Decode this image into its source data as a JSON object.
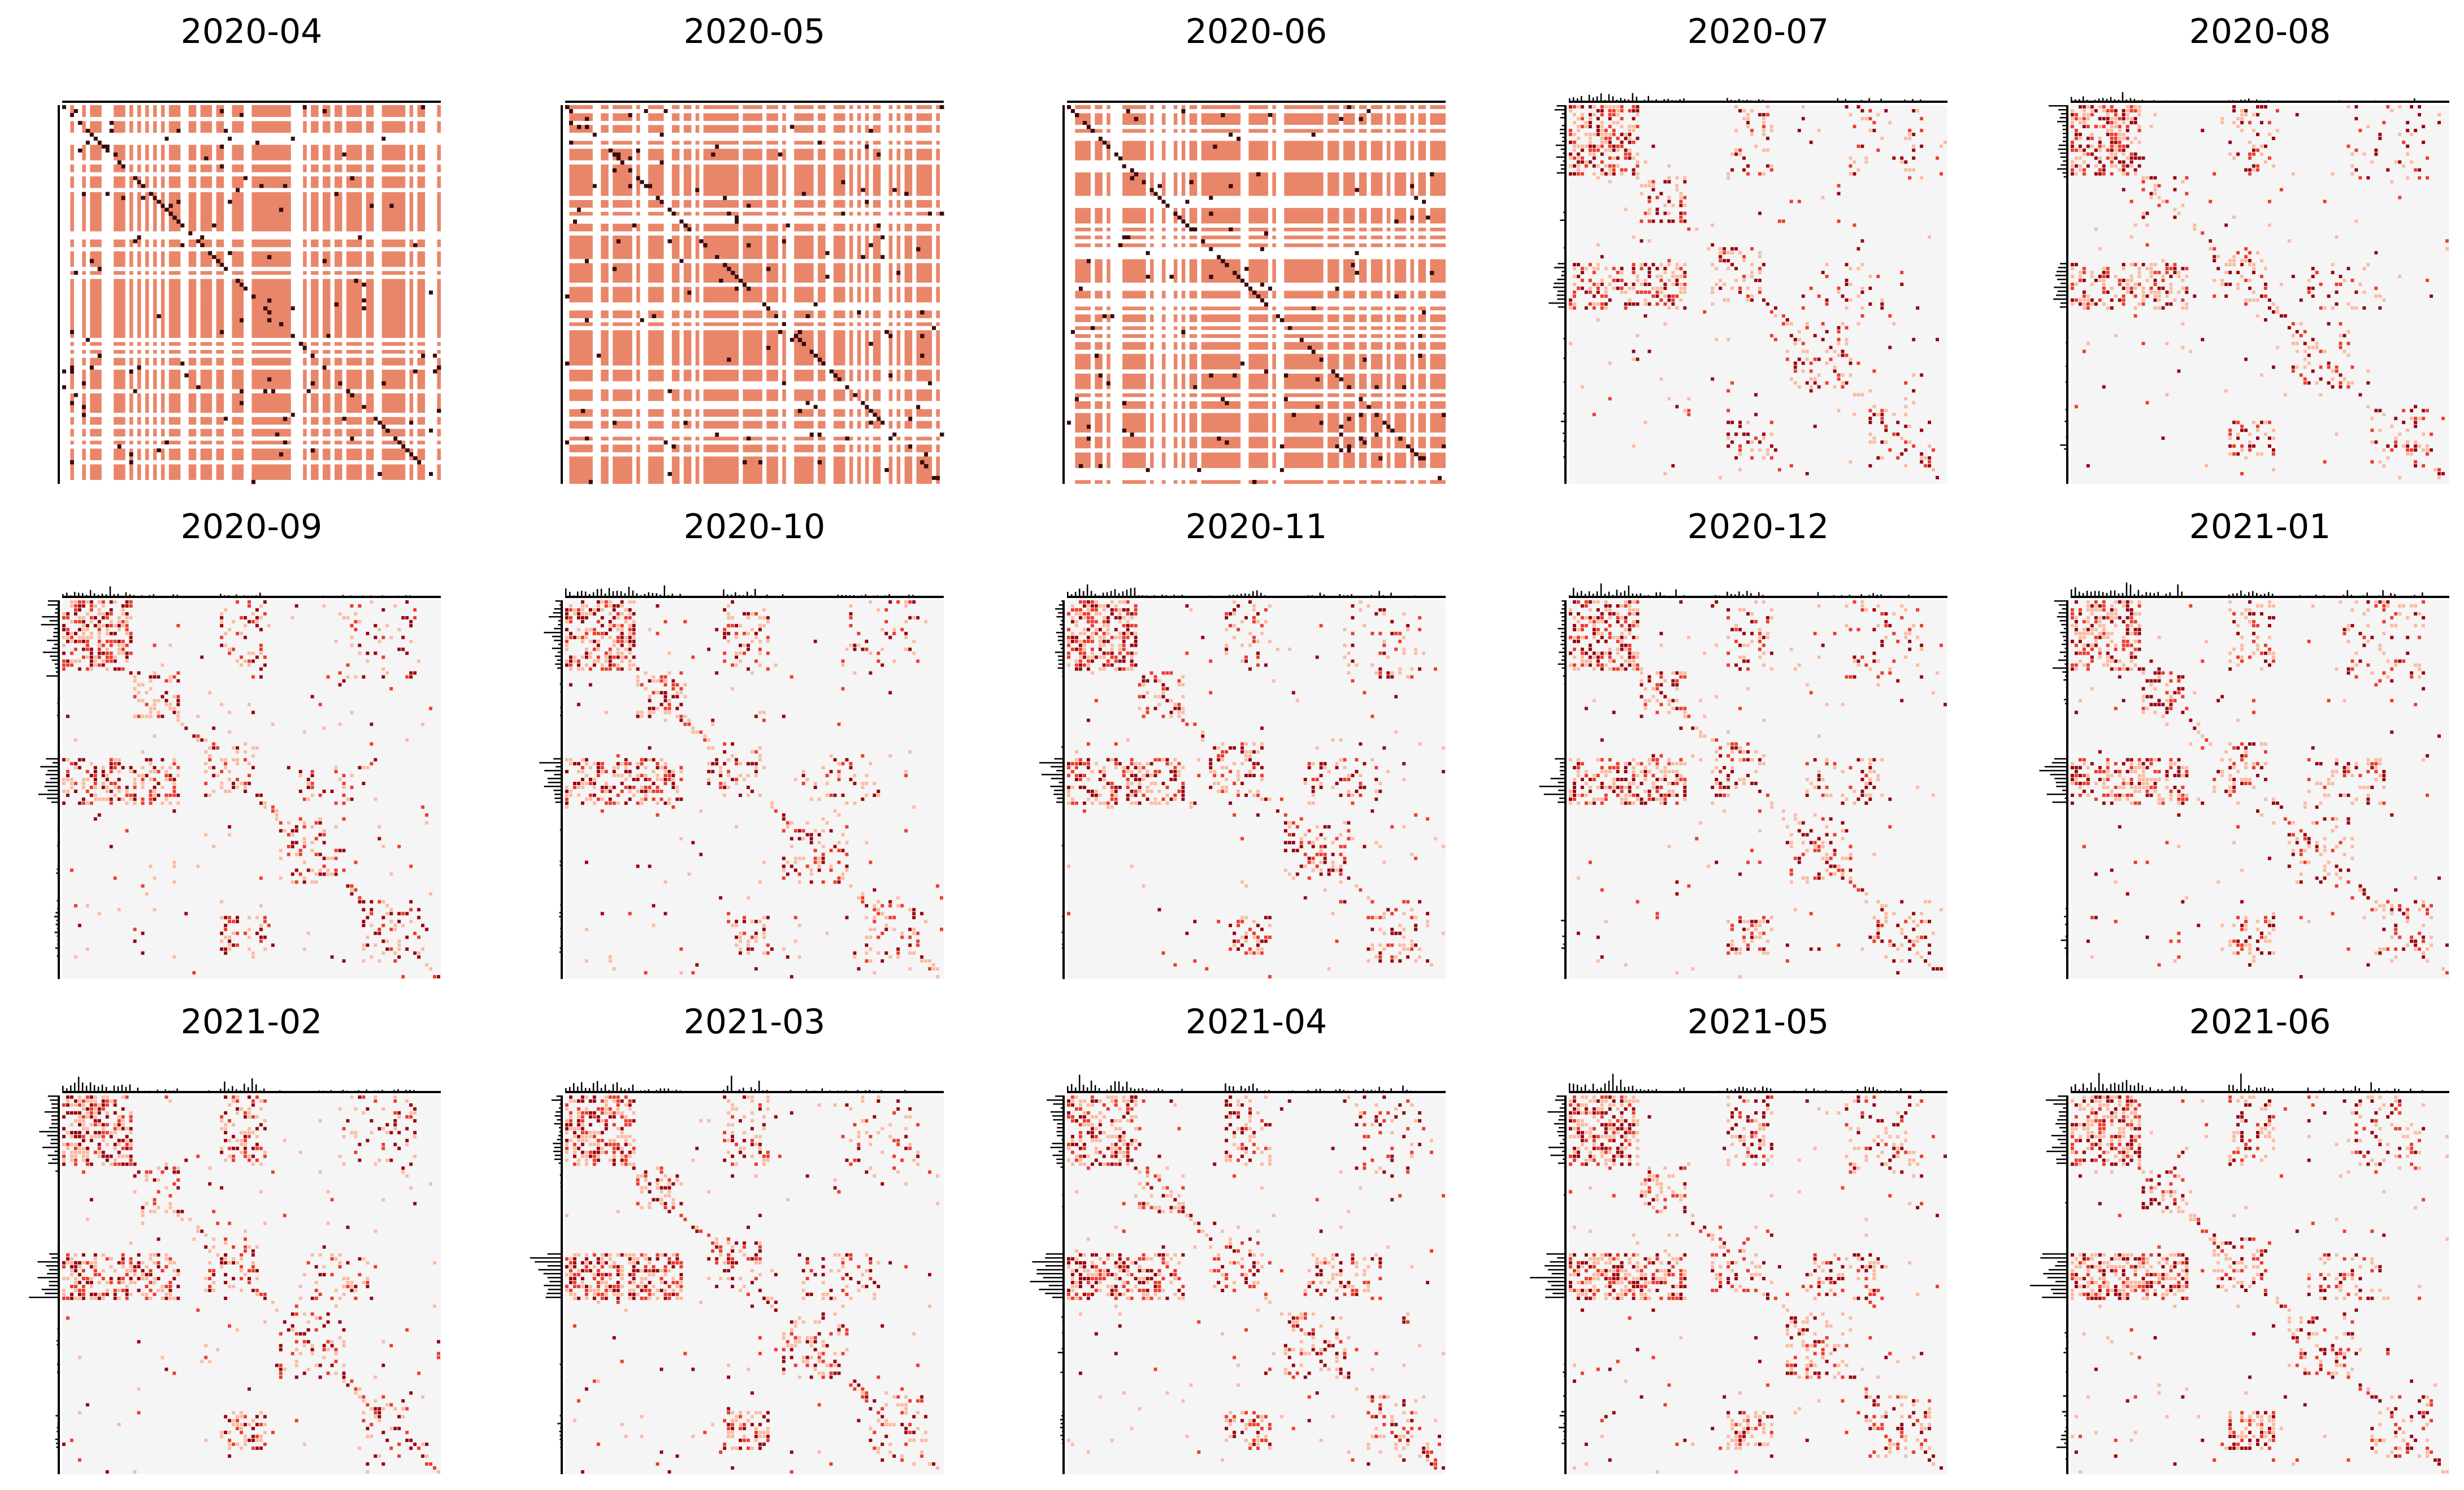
{
  "figure": {
    "description_colors": {
      "background_cell": "#f5f5f5",
      "low_cell": "#fcbba1",
      "mid_cell": "#ef3b2c",
      "high_cell": "#99000d",
      "dense_fill_cell": "#e9866a",
      "marginal_bar": "#000000"
    }
  },
  "chart_data": [
    {
      "type": "heatmap",
      "title": "2020-04",
      "variant": "dense",
      "seed": 11
    },
    {
      "type": "heatmap",
      "title": "2020-05",
      "variant": "dense",
      "seed": 12
    },
    {
      "type": "heatmap",
      "title": "2020-06",
      "variant": "dense",
      "seed": 13
    },
    {
      "type": "heatmap",
      "title": "2020-07",
      "variant": "sparse",
      "seed": 14
    },
    {
      "type": "heatmap",
      "title": "2020-08",
      "variant": "sparse",
      "seed": 15
    },
    {
      "type": "heatmap",
      "title": "2020-09",
      "variant": "sparse",
      "seed": 16
    },
    {
      "type": "heatmap",
      "title": "2020-10",
      "variant": "sparse",
      "seed": 17
    },
    {
      "type": "heatmap",
      "title": "2020-11",
      "variant": "sparse",
      "seed": 18
    },
    {
      "type": "heatmap",
      "title": "2020-12",
      "variant": "sparse",
      "seed": 19
    },
    {
      "type": "heatmap",
      "title": "2021-01",
      "variant": "sparse",
      "seed": 20
    },
    {
      "type": "heatmap",
      "title": "2021-02",
      "variant": "sparse",
      "seed": 21
    },
    {
      "type": "heatmap",
      "title": "2021-03",
      "variant": "sparse",
      "seed": 22
    },
    {
      "type": "heatmap",
      "title": "2021-04",
      "variant": "sparse",
      "seed": 23
    },
    {
      "type": "heatmap",
      "title": "2021-05",
      "variant": "sparse",
      "seed": 24
    },
    {
      "type": "heatmap",
      "title": "2021-06",
      "variant": "sparse",
      "seed": 25
    }
  ]
}
